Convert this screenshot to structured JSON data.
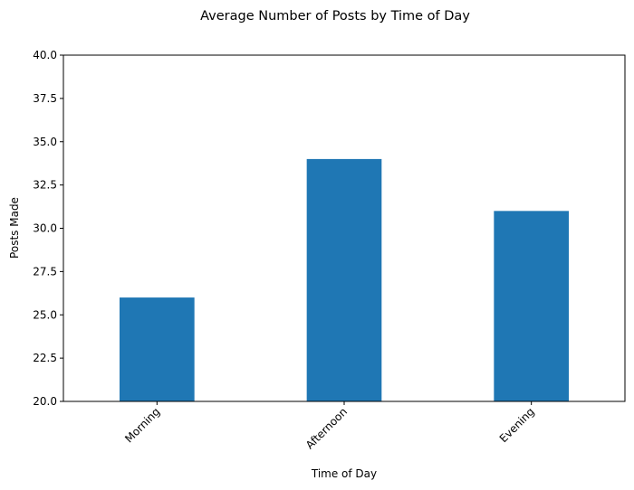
{
  "chart_data": {
    "type": "bar",
    "title": "Average Number of Posts by Time of Day",
    "xlabel": "Time of Day",
    "ylabel": "Posts Made",
    "categories": [
      "Morning",
      "Afternoon",
      "Evening"
    ],
    "values": [
      26,
      34,
      31
    ],
    "ylim": [
      20,
      40
    ],
    "yticks": [
      20.0,
      22.5,
      25.0,
      27.5,
      30.0,
      32.5,
      35.0,
      37.5,
      40.0
    ],
    "ytick_labels": [
      "20.0",
      "22.5",
      "25.0",
      "27.5",
      "30.0",
      "32.5",
      "35.0",
      "37.5",
      "40.0"
    ],
    "bar_color": "#1f77b4",
    "grid": false,
    "legend": "none",
    "xtick_rotation_deg": 45
  }
}
